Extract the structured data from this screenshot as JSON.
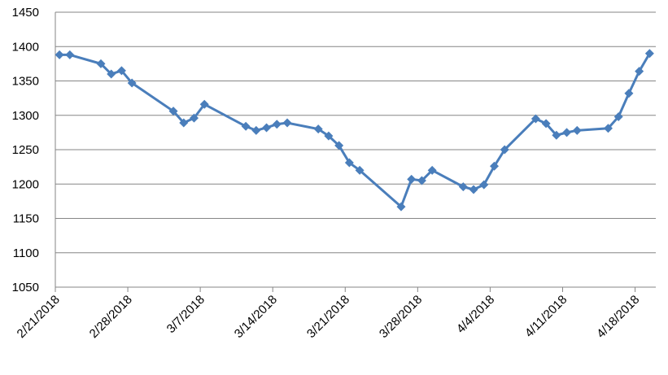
{
  "chart_data": {
    "type": "line",
    "x": [
      "2018-02-21",
      "2018-02-22",
      "2018-02-25",
      "2018-02-26",
      "2018-02-27",
      "2018-02-28",
      "2018-03-04",
      "2018-03-05",
      "2018-03-06",
      "2018-03-07",
      "2018-03-11",
      "2018-03-12",
      "2018-03-13",
      "2018-03-14",
      "2018-03-15",
      "2018-03-18",
      "2018-03-19",
      "2018-03-20",
      "2018-03-21",
      "2018-03-22",
      "2018-03-26",
      "2018-03-27",
      "2018-03-28",
      "2018-03-29",
      "2018-04-01",
      "2018-04-02",
      "2018-04-03",
      "2018-04-04",
      "2018-04-05",
      "2018-04-08",
      "2018-04-09",
      "2018-04-10",
      "2018-04-11",
      "2018-04-12",
      "2018-04-15",
      "2018-04-16",
      "2018-04-17",
      "2018-04-18",
      "2018-04-19"
    ],
    "series": [
      {
        "color": "#4a7ebb",
        "values": [
          1388,
          1388,
          1375,
          1360,
          1365,
          1347,
          1306,
          1289,
          1296,
          1316,
          1284,
          1278,
          1282,
          1287,
          1289,
          1280,
          1270,
          1256,
          1231,
          1220,
          1167,
          1207,
          1205,
          1220,
          1196,
          1192,
          1199,
          1226,
          1250,
          1295,
          1288,
          1271,
          1275,
          1278,
          1281,
          1298,
          1332,
          1364,
          1390
        ]
      }
    ],
    "xlim": [
      "2018-02-21",
      "2018-04-20"
    ],
    "xticks": [
      {
        "value": "2018-02-21",
        "label": "2/21/2018"
      },
      {
        "value": "2018-02-28",
        "label": "2/28/2018"
      },
      {
        "value": "2018-03-07",
        "label": "3/7/2018"
      },
      {
        "value": "2018-03-14",
        "label": "3/14/2018"
      },
      {
        "value": "2018-03-21",
        "label": "3/21/2018"
      },
      {
        "value": "2018-03-28",
        "label": "3/28/2018"
      },
      {
        "value": "2018-04-04",
        "label": "4/4/2018"
      },
      {
        "value": "2018-04-11",
        "label": "4/11/2018"
      },
      {
        "value": "2018-04-18",
        "label": "4/18/2018"
      }
    ],
    "ylim": [
      1050,
      1450
    ],
    "yticks": [
      1050,
      1100,
      1150,
      1200,
      1250,
      1300,
      1350,
      1400,
      1450
    ],
    "grid": true
  }
}
